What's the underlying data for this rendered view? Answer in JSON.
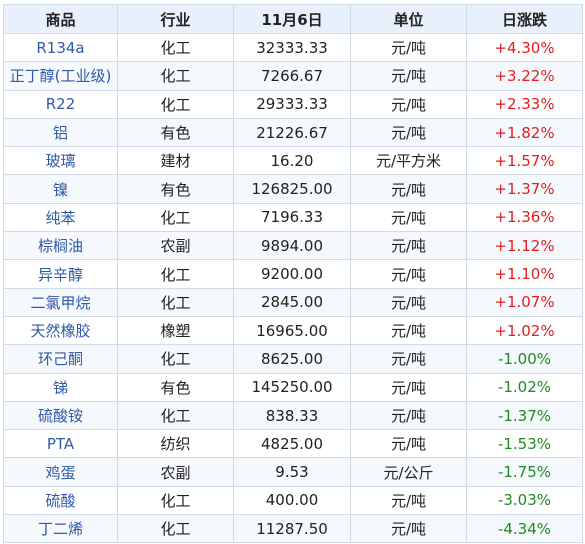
{
  "table": {
    "headers": [
      "商品",
      "行业",
      "11月6日",
      "单位",
      "日涨跌"
    ],
    "colors": {
      "up": "#e02020",
      "down": "#1f8a1f",
      "name": "#2f5aa8",
      "header_bg": "#e7f0fb"
    },
    "rows": [
      {
        "name": "R134a",
        "industry": "化工",
        "price": "32333.33",
        "unit": "元/吨",
        "change": "+4.30%",
        "dir": "up"
      },
      {
        "name": "正丁醇(工业级)",
        "industry": "化工",
        "price": "7266.67",
        "unit": "元/吨",
        "change": "+3.22%",
        "dir": "up"
      },
      {
        "name": "R22",
        "industry": "化工",
        "price": "29333.33",
        "unit": "元/吨",
        "change": "+2.33%",
        "dir": "up"
      },
      {
        "name": "铝",
        "industry": "有色",
        "price": "21226.67",
        "unit": "元/吨",
        "change": "+1.82%",
        "dir": "up"
      },
      {
        "name": "玻璃",
        "industry": "建材",
        "price": "16.20",
        "unit": "元/平方米",
        "change": "+1.57%",
        "dir": "up"
      },
      {
        "name": "镍",
        "industry": "有色",
        "price": "126825.00",
        "unit": "元/吨",
        "change": "+1.37%",
        "dir": "up"
      },
      {
        "name": "纯苯",
        "industry": "化工",
        "price": "7196.33",
        "unit": "元/吨",
        "change": "+1.36%",
        "dir": "up"
      },
      {
        "name": "棕榈油",
        "industry": "农副",
        "price": "9894.00",
        "unit": "元/吨",
        "change": "+1.12%",
        "dir": "up"
      },
      {
        "name": "异辛醇",
        "industry": "化工",
        "price": "9200.00",
        "unit": "元/吨",
        "change": "+1.10%",
        "dir": "up"
      },
      {
        "name": "二氯甲烷",
        "industry": "化工",
        "price": "2845.00",
        "unit": "元/吨",
        "change": "+1.07%",
        "dir": "up"
      },
      {
        "name": "天然橡胶",
        "industry": "橡塑",
        "price": "16965.00",
        "unit": "元/吨",
        "change": "+1.02%",
        "dir": "up"
      },
      {
        "name": "环己酮",
        "industry": "化工",
        "price": "8625.00",
        "unit": "元/吨",
        "change": "-1.00%",
        "dir": "down"
      },
      {
        "name": "锑",
        "industry": "有色",
        "price": "145250.00",
        "unit": "元/吨",
        "change": "-1.02%",
        "dir": "down"
      },
      {
        "name": "硫酸铵",
        "industry": "化工",
        "price": "838.33",
        "unit": "元/吨",
        "change": "-1.37%",
        "dir": "down"
      },
      {
        "name": "PTA",
        "industry": "纺织",
        "price": "4825.00",
        "unit": "元/吨",
        "change": "-1.53%",
        "dir": "down"
      },
      {
        "name": "鸡蛋",
        "industry": "农副",
        "price": "9.53",
        "unit": "元/公斤",
        "change": "-1.75%",
        "dir": "down"
      },
      {
        "name": "硫酸",
        "industry": "化工",
        "price": "400.00",
        "unit": "元/吨",
        "change": "-3.03%",
        "dir": "down"
      },
      {
        "name": "丁二烯",
        "industry": "化工",
        "price": "11287.50",
        "unit": "元/吨",
        "change": "-4.34%",
        "dir": "down"
      }
    ]
  }
}
